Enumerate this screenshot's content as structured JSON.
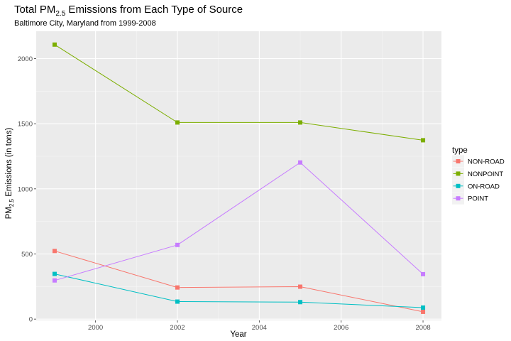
{
  "chart_data": {
    "type": "line",
    "title": "Total PM2.5 Emissions from Each Type of Source",
    "title_parts": {
      "pre": "Total PM",
      "sub": "2.5",
      "post": " Emissions from Each Type of Source"
    },
    "subtitle": "Baltimore City, Maryland from 1999-2008",
    "xlabel": "Year",
    "ylabel": "PM2.5 Emissions (in tons)",
    "ylabel_parts": {
      "pre": "PM",
      "sub": "2.5",
      "post": " Emissions (in tons)"
    },
    "x": [
      1999,
      2002,
      2005,
      2008
    ],
    "xlim": [
      1998.55,
      2008.45
    ],
    "ylim": [
      -10,
      2210
    ],
    "xticks": [
      2000,
      2002,
      2004,
      2006,
      2008
    ],
    "yticks": [
      0,
      500,
      1000,
      1500,
      2000
    ],
    "grid": true,
    "legend": {
      "title": "type",
      "position": "right"
    },
    "series": [
      {
        "name": "NON-ROAD",
        "color": "#F8766D",
        "values": [
          522.9,
          242.7,
          248.9,
          55.8
        ]
      },
      {
        "name": "NONPOINT",
        "color": "#7CAE00",
        "values": [
          2107.6,
          1509.5,
          1509.5,
          1373.2
        ]
      },
      {
        "name": "ON-ROAD",
        "color": "#00BFC4",
        "values": [
          346.8,
          134.3,
          130.4,
          88.3
        ]
      },
      {
        "name": "POINT",
        "color": "#C77CFF",
        "values": [
          296.8,
          569.3,
          1202.5,
          344.98
        ]
      }
    ]
  }
}
